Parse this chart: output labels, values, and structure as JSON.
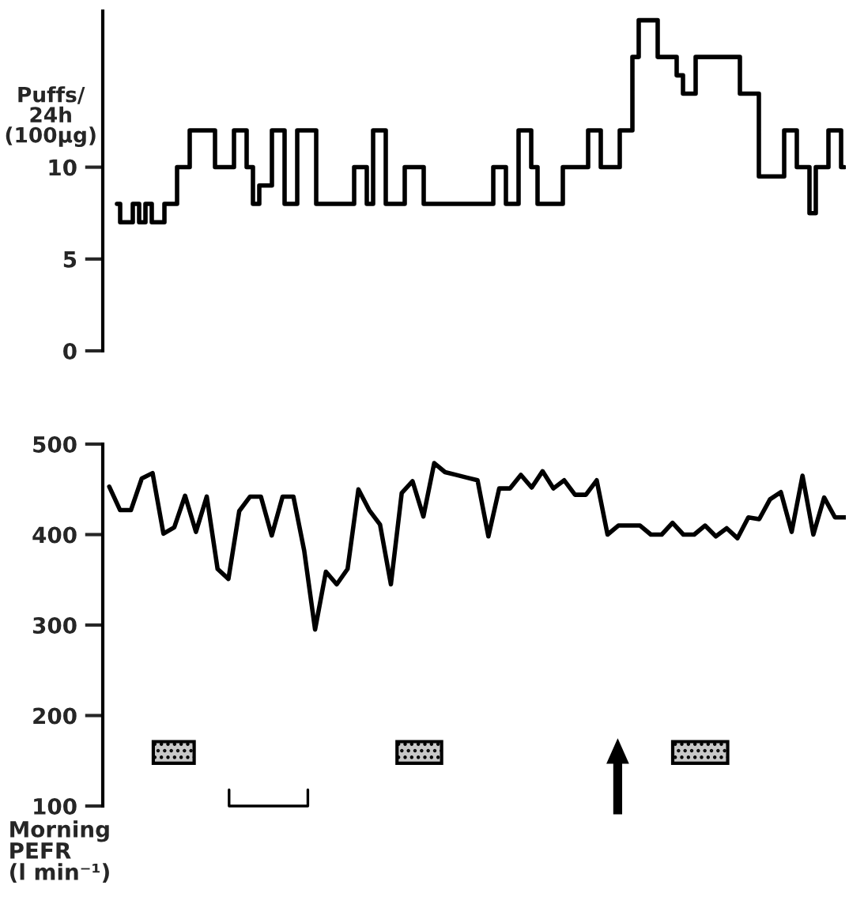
{
  "chart_data": [
    {
      "type": "step",
      "ylabel": "Puffs/\n24h\n(100µg)",
      "ylim": [
        0,
        18.5
      ],
      "yticks": [
        0,
        5,
        10
      ],
      "tick_labels": "y",
      "grid": false,
      "line_style": "solid",
      "categories": [
        null,
        null,
        null,
        null,
        null,
        null,
        null,
        null,
        null,
        null,
        null,
        null,
        null,
        null,
        null,
        null,
        null,
        null,
        null,
        null,
        null,
        null,
        null,
        null,
        null,
        null,
        null,
        null,
        null,
        null,
        null,
        null,
        null,
        null,
        null,
        null,
        null,
        null,
        null,
        null,
        null,
        null,
        null,
        null,
        null,
        null,
        null,
        null,
        null,
        null,
        null,
        null,
        null,
        null,
        null,
        null,
        null,
        null,
        null,
        null,
        null,
        null,
        null,
        null,
        null,
        null,
        null,
        null,
        null,
        null,
        null,
        null,
        null,
        null,
        null,
        null,
        null,
        null,
        null,
        null,
        null,
        null,
        null,
        null,
        null,
        null,
        null,
        null,
        null,
        null,
        null,
        null,
        null,
        null,
        null,
        null,
        null,
        null,
        null,
        null,
        null,
        null,
        null,
        null,
        null,
        null,
        null,
        null,
        null,
        null,
        null,
        null,
        null,
        null,
        null,
        null
      ],
      "series": [
        {
          "color": "#000000",
          "values": [
            8,
            7,
            7,
            8,
            7,
            8,
            7,
            7,
            8,
            8,
            10,
            10,
            12,
            12,
            12,
            12,
            10,
            10,
            10,
            12,
            12,
            10,
            8,
            9,
            9,
            12,
            12,
            8,
            8,
            12,
            12,
            12,
            8,
            8,
            8,
            8,
            8,
            8,
            10,
            10,
            8,
            12,
            12,
            8,
            8,
            8,
            10,
            10,
            10,
            8,
            8,
            8,
            8,
            8,
            8,
            8,
            8,
            8,
            8,
            8,
            10,
            10,
            8,
            8,
            12,
            12,
            10,
            8,
            8,
            8,
            8,
            10,
            10,
            10,
            10,
            12,
            12,
            10,
            10,
            10,
            12,
            12,
            16,
            18,
            18,
            18,
            16,
            16,
            16,
            15,
            14,
            14,
            16,
            16,
            16,
            16,
            16,
            16,
            16,
            14,
            14,
            14,
            9.5,
            9.5,
            9.5,
            9.5,
            12,
            12,
            10,
            10,
            7.5,
            10,
            10,
            12,
            12,
            10
          ]
        }
      ]
    },
    {
      "type": "line",
      "ylabel": "Morning\nPEFR\n(l min⁻¹)",
      "ylim": [
        100,
        500
      ],
      "yticks": [
        100,
        200,
        300,
        400,
        500
      ],
      "tick_labels": "y",
      "grid": false,
      "line_style": "solid",
      "marker": "none",
      "categories": [
        null,
        null,
        null,
        null,
        null,
        null,
        null,
        null,
        null,
        null,
        null,
        null,
        null,
        null,
        null,
        null,
        null,
        null,
        null,
        null,
        null,
        null,
        null,
        null,
        null,
        null,
        null,
        null,
        null,
        null,
        null,
        null,
        null,
        null,
        null,
        null,
        null,
        null,
        null,
        null,
        null,
        null,
        null,
        null,
        null,
        null,
        null,
        null,
        null,
        null,
        null,
        null,
        null,
        null,
        null,
        null,
        null,
        null,
        null,
        null,
        null,
        null,
        null,
        null,
        null,
        null,
        null,
        null,
        null
      ],
      "series": [
        {
          "color": "#000000",
          "values": [
            453,
            427,
            427,
            462,
            468,
            401,
            408,
            443,
            403,
            442,
            362,
            351,
            426,
            442,
            442,
            399,
            442,
            442,
            382,
            295,
            359,
            345,
            362,
            450,
            427,
            411,
            345,
            446,
            459,
            420,
            479,
            469,
            466,
            463,
            460,
            398,
            451,
            451,
            466,
            452,
            470,
            451,
            460,
            444,
            444,
            460,
            400,
            410,
            410,
            410,
            400,
            400,
            413,
            400,
            400,
            410,
            398,
            407,
            396,
            419,
            417,
            439,
            447,
            403,
            465,
            400,
            441,
            419,
            419
          ]
        }
      ]
    }
  ]
}
